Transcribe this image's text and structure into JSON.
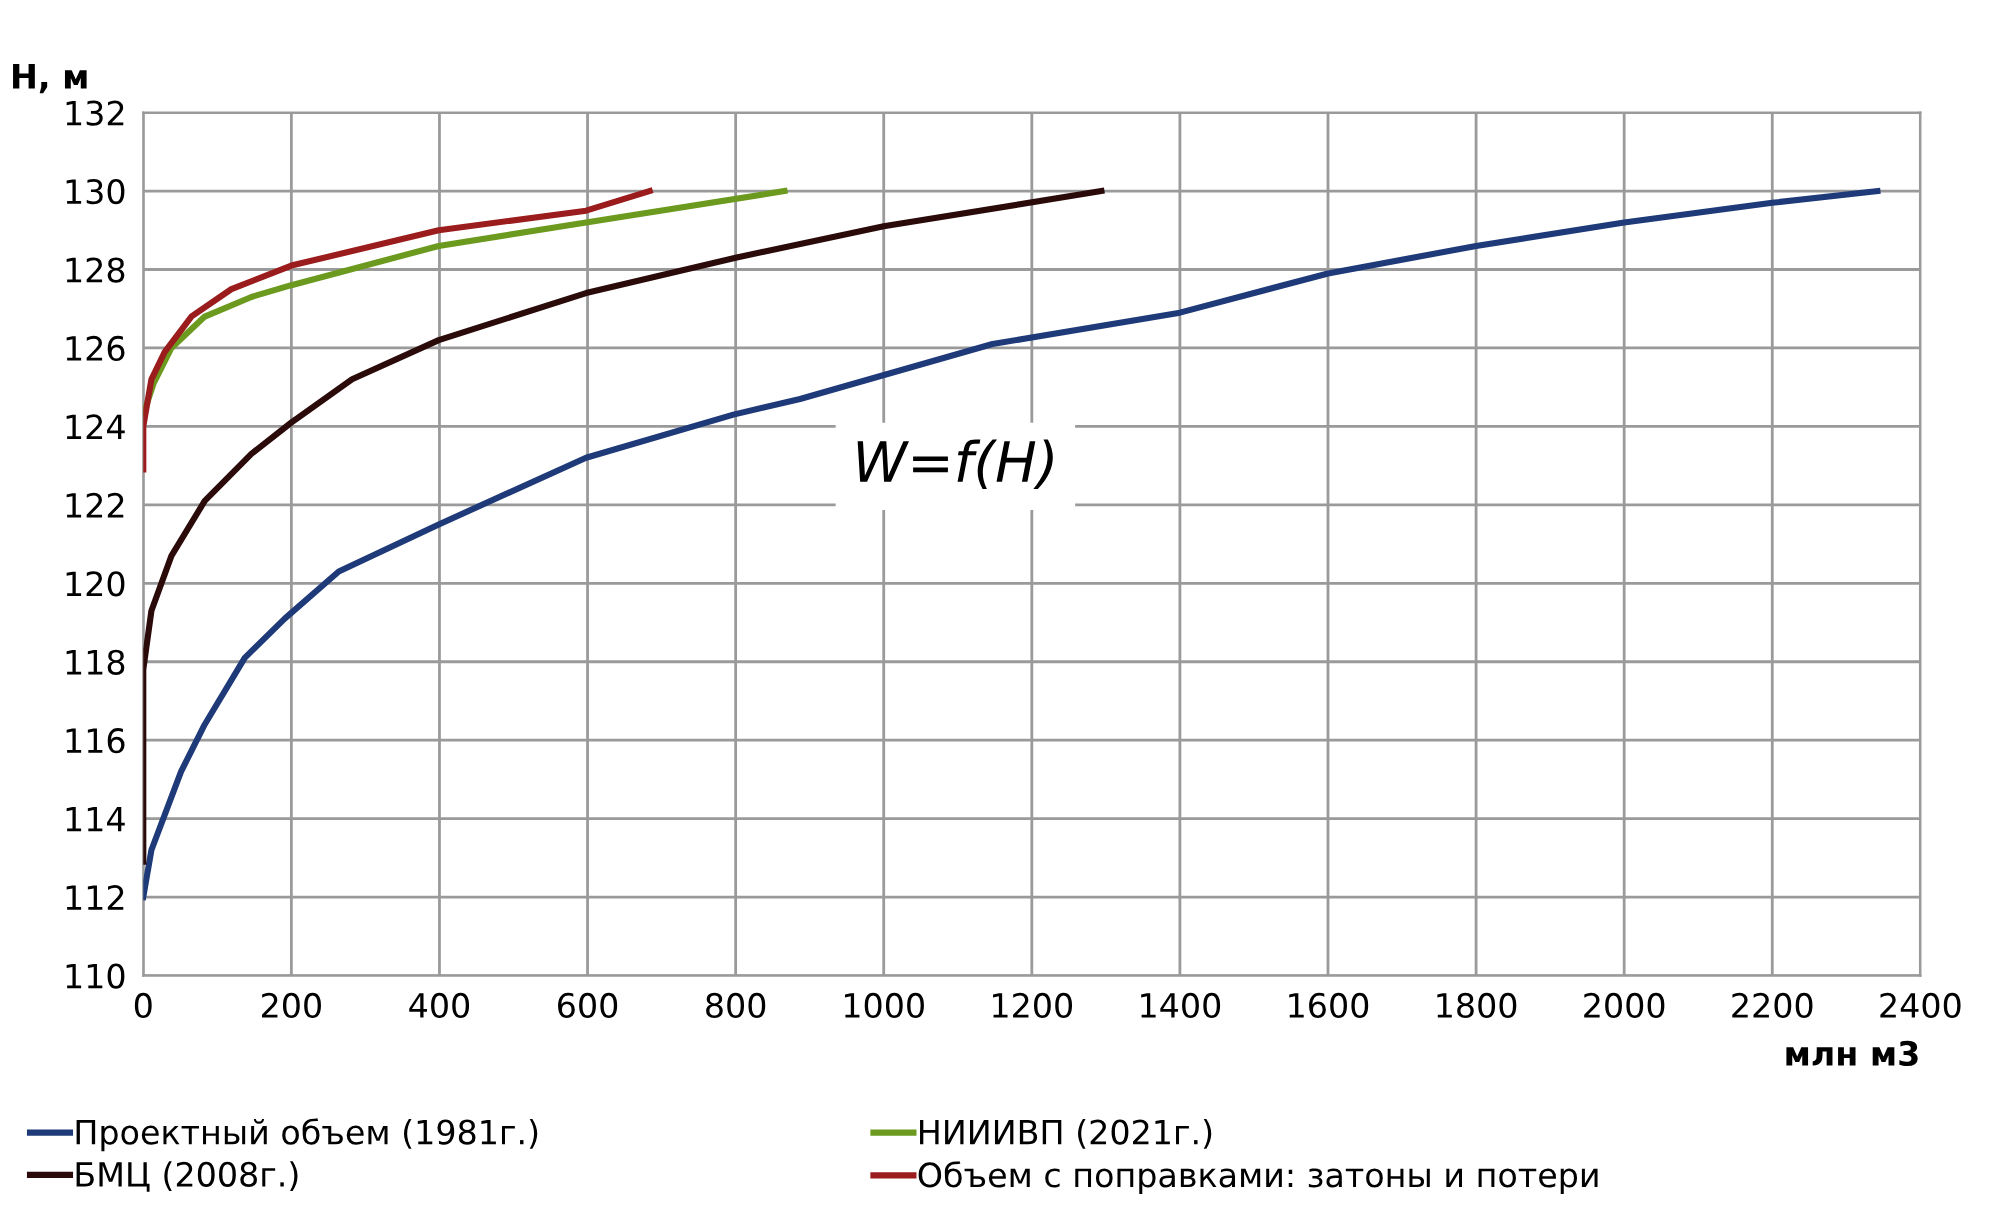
{
  "chart_data": {
    "type": "line",
    "xlabel": "млн м3",
    "ylabel": "Н, м",
    "xlim": [
      0,
      2400
    ],
    "xticks": [
      0,
      200,
      400,
      600,
      800,
      1000,
      1200,
      1400,
      1600,
      1800,
      2000,
      2200,
      2400
    ],
    "ylim": [
      110,
      132
    ],
    "yticks": [
      110,
      112,
      114,
      116,
      118,
      120,
      122,
      124,
      126,
      128,
      130,
      132
    ],
    "grid": true,
    "legend": "bottom",
    "marker": "none",
    "line_style": "solid",
    "annotations": [
      "W=f(H)"
    ],
    "series": [
      {
        "name": "Проектный объем (1981г.)",
        "color": "#1f3a78",
        "x": [
          0,
          11,
          51,
          83,
          137,
          191,
          264,
          399,
          598,
          797,
          887,
          1147,
          1400,
          1600,
          1800,
          2000,
          2200,
          2342
        ],
        "values": [
          112,
          113.2,
          115.2,
          116.4,
          118.1,
          119.1,
          120.3,
          121.5,
          123.2,
          124.3,
          124.7,
          126.1,
          126.9,
          127.9,
          128.6,
          129.2,
          129.7,
          130
        ]
      },
      {
        "name": "БМЦ (2008г.)",
        "color": "#2b0a0a",
        "x": [
          0,
          0,
          11,
          38,
          83,
          146,
          200,
          282,
          399,
          598,
          800,
          1000,
          1294
        ],
        "values": [
          112.9,
          117.8,
          119.3,
          120.7,
          122.1,
          123.3,
          124.1,
          125.2,
          126.2,
          127.4,
          128.3,
          129.1,
          130
        ]
      },
      {
        "name": "НИИИВП (2021г.)",
        "color": "#6b9a1f",
        "x": [
          0,
          14,
          38,
          83,
          146,
          200,
          399,
          598,
          866
        ],
        "values": [
          124.3,
          125.1,
          126.0,
          126.8,
          127.3,
          127.6,
          128.6,
          129.2,
          130
        ]
      },
      {
        "name": "Объем с поправками: затоны и потери",
        "color": "#9b1c1c",
        "x": [
          0,
          0,
          11,
          29,
          65,
          119,
          200,
          399,
          598,
          684
        ],
        "values": [
          122.9,
          124.0,
          125.2,
          125.9,
          126.8,
          127.5,
          128.1,
          129.0,
          129.5,
          130
        ]
      }
    ]
  }
}
